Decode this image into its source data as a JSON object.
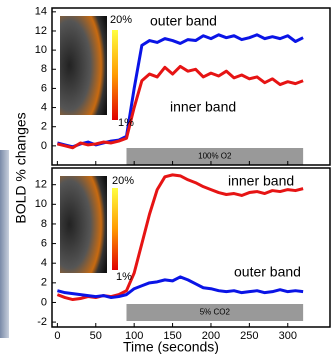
{
  "chart_data": [
    {
      "type": "line",
      "y_label": "BOLD % changes",
      "x": [
        0,
        10,
        20,
        30,
        40,
        50,
        60,
        70,
        80,
        90,
        100,
        110,
        120,
        130,
        140,
        150,
        160,
        170,
        180,
        190,
        200,
        210,
        220,
        230,
        240,
        250,
        260,
        270,
        280,
        290,
        300,
        310,
        320
      ],
      "series": [
        {
          "name": "outer band",
          "color": "#0a14e6",
          "values": [
            0.3,
            0.1,
            -0.1,
            0.2,
            0.4,
            0.1,
            0.3,
            0.5,
            0.6,
            1.0,
            6,
            10.5,
            11,
            10.8,
            11.2,
            11,
            10.7,
            11.1,
            11,
            11.5,
            11.2,
            11.6,
            11.3,
            11.5,
            11.1,
            11.3,
            11.6,
            11.2,
            11.4,
            11.2,
            11.5,
            10.9,
            11.3
          ]
        },
        {
          "name": "inner band",
          "color": "#e61414",
          "values": [
            0.2,
            0,
            -0.2,
            0.3,
            0.1,
            0.2,
            0.4,
            0.3,
            0.5,
            0.8,
            4,
            6.8,
            7.5,
            7.2,
            8.2,
            7.5,
            8.3,
            7.8,
            8,
            7.2,
            7.6,
            7.3,
            7.8,
            7.1,
            7.4,
            7,
            7.2,
            6.6,
            7,
            6.4,
            6.7,
            6.5,
            6.8
          ]
        }
      ],
      "stimulus": {
        "label": "100% O2",
        "start": 90,
        "end": 320
      },
      "colorbar_labels": [
        "20%",
        "1%"
      ],
      "xlim": [
        -7,
        355
      ],
      "xticks": [
        0,
        50,
        100,
        150,
        200,
        250,
        300
      ],
      "show_xtick_labels": false,
      "ylim": [
        -2,
        14.4
      ],
      "yticks": [
        0,
        2,
        4,
        6,
        8,
        10,
        12,
        14
      ]
    },
    {
      "type": "line",
      "x_label": "Time (seconds)",
      "x": [
        0,
        10,
        20,
        30,
        40,
        50,
        60,
        70,
        80,
        90,
        100,
        110,
        120,
        130,
        140,
        150,
        160,
        170,
        180,
        190,
        200,
        210,
        220,
        230,
        240,
        250,
        260,
        270,
        280,
        290,
        300,
        310,
        320
      ],
      "series": [
        {
          "name": "inner band",
          "color": "#e61414",
          "values": [
            0.8,
            0.5,
            0.3,
            0.4,
            0.6,
            0.5,
            0.7,
            0.6,
            0.8,
            1.2,
            3,
            6,
            9,
            11.5,
            12.8,
            13,
            12.9,
            12.5,
            12.2,
            11.8,
            11.5,
            11.2,
            11,
            11.1,
            10.9,
            11.2,
            11.3,
            11.1,
            11.4,
            11.3,
            11.5,
            11.4,
            11.6
          ]
        },
        {
          "name": "outer band",
          "color": "#0a14e6",
          "values": [
            1.2,
            1.0,
            0.9,
            0.8,
            0.7,
            0.6,
            0.7,
            0.5,
            0.6,
            0.8,
            1.4,
            1.7,
            2,
            2.1,
            2.3,
            2.2,
            2.6,
            2.3,
            1.9,
            1.5,
            1.4,
            1.2,
            1.1,
            1.2,
            1.0,
            1.1,
            1.2,
            1.0,
            1.1,
            1.3,
            1.1,
            1.2,
            1.1
          ]
        }
      ],
      "stimulus": {
        "label": "5% CO2",
        "start": 90,
        "end": 320
      },
      "colorbar_labels": [
        "20%",
        "1%"
      ],
      "xlim": [
        -7,
        355
      ],
      "xticks": [
        0,
        50,
        100,
        150,
        200,
        250,
        300
      ],
      "show_xtick_labels": true,
      "ylim": [
        -2.5,
        13.7
      ],
      "yticks": [
        -2,
        0,
        2,
        4,
        6,
        8,
        10,
        12
      ]
    }
  ]
}
